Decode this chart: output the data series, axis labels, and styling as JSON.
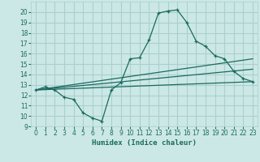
{
  "bg_color": "#cce8e6",
  "grid_color": "#a8d0ce",
  "line_color": "#1a6b60",
  "xlabel": "Humidex (Indice chaleur)",
  "xlim": [
    -0.5,
    23.5
  ],
  "ylim": [
    9,
    21
  ],
  "xticks": [
    0,
    1,
    2,
    3,
    4,
    5,
    6,
    7,
    8,
    9,
    10,
    11,
    12,
    13,
    14,
    15,
    16,
    17,
    18,
    19,
    20,
    21,
    22,
    23
  ],
  "yticks": [
    9,
    10,
    11,
    12,
    13,
    14,
    15,
    16,
    17,
    18,
    19,
    20
  ],
  "series1_x": [
    0,
    1,
    2,
    3,
    4,
    5,
    6,
    7,
    8,
    9,
    10,
    11,
    12,
    13,
    14,
    15,
    16,
    17,
    18,
    19,
    20,
    21,
    22,
    23
  ],
  "series1_y": [
    12.5,
    12.8,
    12.5,
    11.8,
    11.6,
    10.3,
    9.8,
    9.5,
    12.5,
    13.2,
    15.5,
    15.6,
    17.3,
    19.9,
    20.1,
    20.2,
    19.0,
    17.2,
    16.7,
    15.8,
    15.5,
    14.3,
    13.6,
    13.3
  ],
  "series2_x": [
    0,
    23
  ],
  "series2_y": [
    12.5,
    15.5
  ],
  "series3_x": [
    0,
    23
  ],
  "series3_y": [
    12.5,
    14.5
  ],
  "series4_x": [
    0,
    23
  ],
  "series4_y": [
    12.5,
    13.3
  ]
}
